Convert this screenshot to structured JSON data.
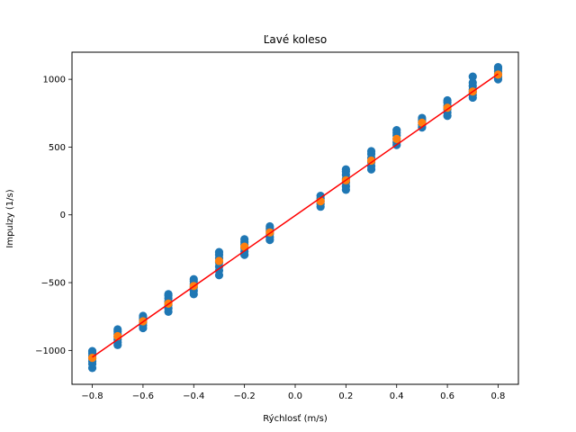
{
  "chart_data": {
    "type": "scatter",
    "title": "Ľavé koleso",
    "xlabel": "Rýchlosť (m/s)",
    "ylabel": "Impulzy (1/s)",
    "xlim": [
      -0.88,
      0.88
    ],
    "ylim": [
      -1250,
      1200
    ],
    "xticks": [
      -0.8,
      -0.6,
      -0.4,
      -0.2,
      0.0,
      0.2,
      0.4,
      0.6,
      0.8
    ],
    "xtick_labels": [
      "−0.8",
      "−0.6",
      "−0.4",
      "−0.2",
      "0.0",
      "0.2",
      "0.4",
      "0.6",
      "0.8"
    ],
    "yticks": [
      -1000,
      -500,
      0,
      500,
      1000
    ],
    "ytick_labels": [
      "−1000",
      "−500",
      "0",
      "500",
      "1000"
    ],
    "grid": false,
    "colors": {
      "measured": "#1f77b4",
      "mean": "#ff7f0e",
      "fit": "#ff0000"
    },
    "series": [
      {
        "kind": "scatter",
        "role": "measured",
        "points": [
          [
            -0.8,
            -1130
          ],
          [
            -0.8,
            -1100
          ],
          [
            -0.8,
            -1080
          ],
          [
            -0.8,
            -1060
          ],
          [
            -0.8,
            -1040
          ],
          [
            -0.8,
            -1020
          ],
          [
            -0.8,
            -1005
          ],
          [
            -0.7,
            -960
          ],
          [
            -0.7,
            -940
          ],
          [
            -0.7,
            -920
          ],
          [
            -0.7,
            -900
          ],
          [
            -0.7,
            -880
          ],
          [
            -0.7,
            -860
          ],
          [
            -0.7,
            -845
          ],
          [
            -0.6,
            -835
          ],
          [
            -0.6,
            -815
          ],
          [
            -0.6,
            -795
          ],
          [
            -0.6,
            -775
          ],
          [
            -0.6,
            -760
          ],
          [
            -0.6,
            -745
          ],
          [
            -0.5,
            -715
          ],
          [
            -0.5,
            -690
          ],
          [
            -0.5,
            -665
          ],
          [
            -0.5,
            -640
          ],
          [
            -0.5,
            -615
          ],
          [
            -0.5,
            -595
          ],
          [
            -0.5,
            -585
          ],
          [
            -0.4,
            -585
          ],
          [
            -0.4,
            -560
          ],
          [
            -0.4,
            -535
          ],
          [
            -0.4,
            -510
          ],
          [
            -0.4,
            -490
          ],
          [
            -0.4,
            -475
          ],
          [
            -0.3,
            -445
          ],
          [
            -0.3,
            -410
          ],
          [
            -0.3,
            -380
          ],
          [
            -0.3,
            -350
          ],
          [
            -0.3,
            -320
          ],
          [
            -0.3,
            -295
          ],
          [
            -0.3,
            -275
          ],
          [
            -0.2,
            -295
          ],
          [
            -0.2,
            -270
          ],
          [
            -0.2,
            -245
          ],
          [
            -0.2,
            -220
          ],
          [
            -0.2,
            -200
          ],
          [
            -0.2,
            -180
          ],
          [
            -0.1,
            -185
          ],
          [
            -0.1,
            -165
          ],
          [
            -0.1,
            -140
          ],
          [
            -0.1,
            -120
          ],
          [
            -0.1,
            -100
          ],
          [
            -0.1,
            -85
          ],
          [
            0.1,
            60
          ],
          [
            0.1,
            80
          ],
          [
            0.1,
            100
          ],
          [
            0.1,
            120
          ],
          [
            0.1,
            140
          ],
          [
            0.2,
            185
          ],
          [
            0.2,
            210
          ],
          [
            0.2,
            240
          ],
          [
            0.2,
            265
          ],
          [
            0.2,
            295
          ],
          [
            0.2,
            320
          ],
          [
            0.2,
            335
          ],
          [
            0.3,
            335
          ],
          [
            0.3,
            360
          ],
          [
            0.3,
            390
          ],
          [
            0.3,
            420
          ],
          [
            0.3,
            450
          ],
          [
            0.3,
            470
          ],
          [
            0.4,
            515
          ],
          [
            0.4,
            535
          ],
          [
            0.4,
            560
          ],
          [
            0.4,
            585
          ],
          [
            0.4,
            605
          ],
          [
            0.4,
            625
          ],
          [
            0.5,
            645
          ],
          [
            0.5,
            665
          ],
          [
            0.5,
            685
          ],
          [
            0.5,
            700
          ],
          [
            0.5,
            715
          ],
          [
            0.6,
            730
          ],
          [
            0.6,
            755
          ],
          [
            0.6,
            780
          ],
          [
            0.6,
            805
          ],
          [
            0.6,
            830
          ],
          [
            0.6,
            845
          ],
          [
            0.7,
            865
          ],
          [
            0.7,
            885
          ],
          [
            0.7,
            905
          ],
          [
            0.7,
            925
          ],
          [
            0.7,
            950
          ],
          [
            0.7,
            975
          ],
          [
            0.7,
            1020
          ],
          [
            0.8,
            1000
          ],
          [
            0.8,
            1020
          ],
          [
            0.8,
            1040
          ],
          [
            0.8,
            1060
          ],
          [
            0.8,
            1080
          ],
          [
            0.8,
            1090
          ]
        ]
      },
      {
        "kind": "scatter",
        "role": "mean",
        "points": [
          [
            -0.8,
            -1055
          ],
          [
            -0.7,
            -895
          ],
          [
            -0.6,
            -785
          ],
          [
            -0.5,
            -655
          ],
          [
            -0.4,
            -525
          ],
          [
            -0.3,
            -340
          ],
          [
            -0.2,
            -235
          ],
          [
            -0.1,
            -130
          ],
          [
            0.1,
            100
          ],
          [
            0.2,
            255
          ],
          [
            0.3,
            400
          ],
          [
            0.4,
            560
          ],
          [
            0.5,
            680
          ],
          [
            0.6,
            790
          ],
          [
            0.7,
            910
          ],
          [
            0.8,
            1035
          ]
        ]
      },
      {
        "kind": "line",
        "role": "fit",
        "points": [
          [
            -0.8,
            -1050
          ],
          [
            0.8,
            1040
          ]
        ]
      }
    ]
  }
}
